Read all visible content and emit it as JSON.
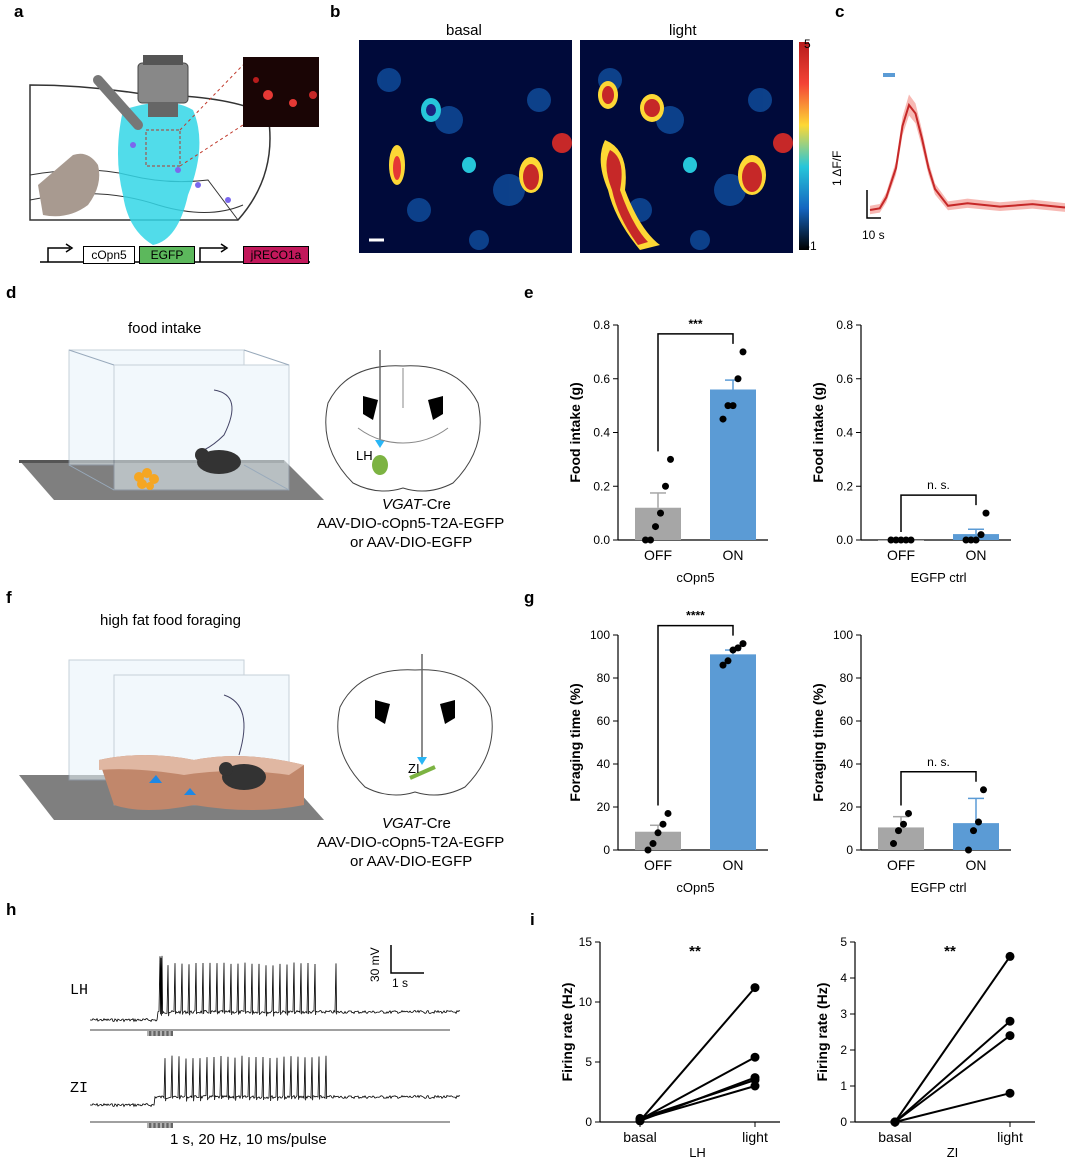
{
  "panels": {
    "a": "a",
    "b": "b",
    "c": "c",
    "d": "d",
    "e": "e",
    "f": "f",
    "g": "g",
    "h": "h",
    "i": "i"
  },
  "panel_a": {
    "construct": [
      "cOpn5",
      "EGFP",
      "jRECO1a"
    ],
    "colors": {
      "egfp": "#5cb85c",
      "jreco": "#c2185b",
      "light": "#33d6e6"
    }
  },
  "panel_b": {
    "titles": [
      "basal",
      "light"
    ],
    "colorbar": {
      "max": "5",
      "min": "-1"
    }
  },
  "panel_c": {
    "scale_y": "1 ΔF/F",
    "scale_x": "10 s",
    "chart_data": {
      "type": "line",
      "x": [
        0,
        3,
        5,
        8,
        10,
        12,
        14,
        16,
        18,
        20,
        24,
        30,
        40,
        50,
        60
      ],
      "y": [
        0,
        0.02,
        0.15,
        0.5,
        1.0,
        1.25,
        1.15,
        0.85,
        0.5,
        0.25,
        0.05,
        0.08,
        0.04,
        0.07,
        0.03
      ],
      "stimulus_color": "#5b9bd5",
      "line_color": "#c62828"
    }
  },
  "panel_d": {
    "title": "food intake",
    "region": "LH",
    "line1_italic": "VGAT",
    "line1_rest": "-Cre",
    "line2": "AAV-DIO-cOpn5-T2A-EGFP",
    "line3": "or AAV-DIO-EGFP"
  },
  "panel_f": {
    "title": "high fat food foraging",
    "region": "ZI",
    "line1_italic": "VGAT",
    "line1_rest": "-Cre",
    "line2": "AAV-DIO-cOpn5-T2A-EGFP",
    "line3": "or AAV-DIO-EGFP"
  },
  "panel_e": {
    "left": {
      "ylabel": "Food intake (g)",
      "xlabel": "cOpn5",
      "sig": "***",
      "chart_data": {
        "type": "bar",
        "categories": [
          "OFF",
          "ON"
        ],
        "values": [
          0.12,
          0.56
        ],
        "errors": [
          0.055,
          0.035
        ],
        "points": [
          [
            0,
            0.0,
            0.05,
            0.1,
            0.2,
            0.3
          ],
          [
            0.45,
            0.5,
            0.5,
            0.6,
            0.7
          ]
        ],
        "ylim": [
          0,
          0.8
        ],
        "yticks": [
          "0.0",
          "0.2",
          "0.4",
          "0.6",
          "0.8"
        ],
        "colors": [
          "#a6a6a6",
          "#5b9bd5"
        ]
      }
    },
    "right": {
      "ylabel": "Food intake (g)",
      "xlabel": "EGFP ctrl",
      "sig": "n. s.",
      "chart_data": {
        "type": "bar",
        "categories": [
          "OFF",
          "ON"
        ],
        "values": [
          0.0,
          0.022
        ],
        "errors": [
          0.0,
          0.018
        ],
        "points": [
          [
            0,
            0,
            0,
            0,
            0
          ],
          [
            0,
            0,
            0,
            0.02,
            0.1
          ]
        ],
        "ylim": [
          0,
          0.8
        ],
        "yticks": [
          "0.0",
          "0.2",
          "0.4",
          "0.6",
          "0.8"
        ],
        "colors": [
          "#a6a6a6",
          "#5b9bd5"
        ]
      }
    }
  },
  "panel_g": {
    "left": {
      "ylabel": "Foraging time (%)",
      "xlabel": "cOpn5",
      "sig": "****",
      "chart_data": {
        "type": "bar",
        "categories": [
          "OFF",
          "ON"
        ],
        "values": [
          8.5,
          91
        ],
        "errors": [
          3,
          2
        ],
        "points": [
          [
            0,
            3,
            8,
            12,
            17
          ],
          [
            86,
            88,
            93,
            94,
            96
          ]
        ],
        "ylim": [
          0,
          100
        ],
        "yticks": [
          "0",
          "20",
          "40",
          "60",
          "80",
          "100"
        ],
        "colors": [
          "#a6a6a6",
          "#5b9bd5"
        ]
      }
    },
    "right": {
      "ylabel": "Foraging time (%)",
      "xlabel": "EGFP ctrl",
      "sig": "n. s.",
      "chart_data": {
        "type": "bar",
        "categories": [
          "OFF",
          "ON"
        ],
        "values": [
          10.5,
          12.5
        ],
        "errors": [
          5,
          11.5
        ],
        "points": [
          [
            3,
            9,
            12,
            17
          ],
          [
            0,
            9,
            13,
            28
          ]
        ],
        "ylim": [
          0,
          100
        ],
        "yticks": [
          "0",
          "20",
          "40",
          "60",
          "80",
          "100"
        ],
        "colors": [
          "#a6a6a6",
          "#5b9bd5"
        ]
      }
    }
  },
  "panel_h": {
    "trace1": "LH",
    "trace2": "ZI",
    "scale_y": "30 mV",
    "scale_x": "1 s",
    "caption": "1 s, 20  Hz, 10 ms/pulse"
  },
  "panel_i": {
    "left": {
      "ylabel": "Firing rate (Hz)",
      "xlabel": "LH",
      "sig": "**",
      "chart_data": {
        "type": "line",
        "categories": [
          "basal",
          "light"
        ],
        "pairs": [
          [
            0.1,
            11.2
          ],
          [
            0.2,
            5.4
          ],
          [
            0.1,
            3.7
          ],
          [
            0.3,
            3.5
          ],
          [
            0.2,
            3.0
          ]
        ],
        "ylim": [
          0,
          15
        ],
        "yticks": [
          "0",
          "5",
          "10",
          "15"
        ]
      }
    },
    "right": {
      "ylabel": "Firing rate (Hz)",
      "xlabel": "ZI",
      "sig": "**",
      "chart_data": {
        "type": "line",
        "categories": [
          "basal",
          "light"
        ],
        "pairs": [
          [
            0,
            4.6
          ],
          [
            0,
            2.8
          ],
          [
            0,
            2.4
          ],
          [
            0,
            0.8
          ]
        ],
        "ylim": [
          0,
          5
        ],
        "yticks": [
          "0",
          "1",
          "2",
          "3",
          "4",
          "5"
        ]
      }
    }
  }
}
